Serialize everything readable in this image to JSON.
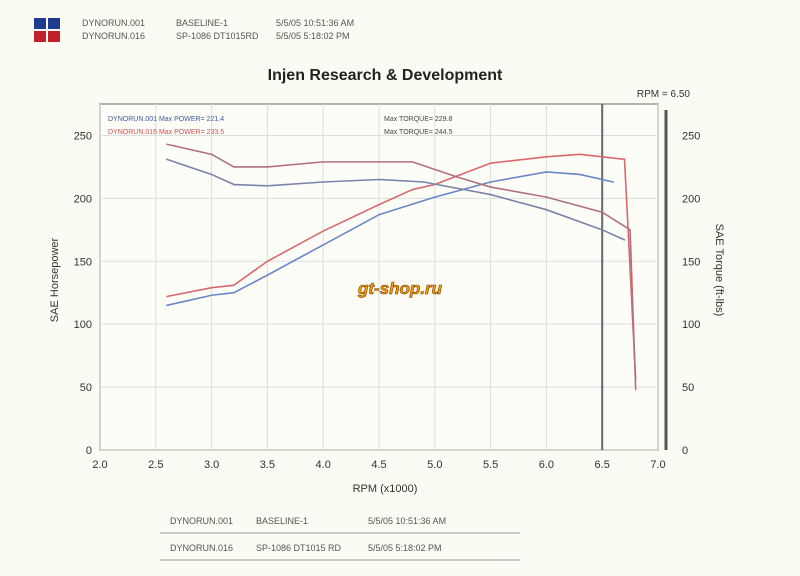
{
  "header": {
    "runs": [
      {
        "run": "DYNORUN.001",
        "label": "BASELINE-1",
        "date": "5/5/05 10:51:36 AM",
        "color": "#1e3c8c"
      },
      {
        "run": "DYNORUN.016",
        "label": "SP-1086  DT1015RD",
        "date": "5/5/05 5:18:02 PM",
        "color": "#c0202a"
      }
    ]
  },
  "footer": {
    "rows": [
      {
        "run": "DYNORUN.001",
        "label": "BASELINE-1",
        "date": "5/5/05 10:51:36 AM"
      },
      {
        "run": "DYNORUN.016",
        "label": "SP-1086  DT1015    RD",
        "date": "5/5/05 5:18:02 PM"
      }
    ]
  },
  "watermark": "gt-shop.ru",
  "chart_data": {
    "type": "line",
    "title": "Injen Research & Development",
    "xlabel": "RPM (x1000)",
    "ylabel": "SAE Horsepower",
    "y2label": "SAE Torque (ft-lbs)",
    "cursor_label": "RPM = 6.50",
    "cursor_x": 6.5,
    "xlim": [
      2.0,
      7.0
    ],
    "ylim": [
      0,
      275
    ],
    "xticks": [
      "2.0",
      "2.5",
      "3.0",
      "3.5",
      "4.0",
      "4.5",
      "5.0",
      "5.5",
      "6.0",
      "6.5",
      "7.0"
    ],
    "yticks": [
      "0",
      "50",
      "100",
      "150",
      "200",
      "250"
    ],
    "grid": true,
    "annotations": [
      {
        "text": "DYNORUN.001  Max POWER= 221.4",
        "color": "#3a5aa8"
      },
      {
        "text": "Max TORQUE= 229.8",
        "color": "#444"
      },
      {
        "text": "DYNORUN.016  Max POWER= 233.5",
        "color": "#d05050"
      },
      {
        "text": "Max TORQUE= 244.5",
        "color": "#444"
      }
    ],
    "series": [
      {
        "key": "power_016",
        "color": "#d86a6a",
        "x": [
          2.6,
          3.0,
          3.2,
          3.5,
          4.0,
          4.5,
          4.8,
          5.0,
          5.5,
          6.0,
          6.3,
          6.7,
          6.8
        ],
        "y": [
          122,
          129,
          131,
          150,
          174,
          195,
          207,
          211,
          228,
          233,
          235,
          231,
          56
        ]
      },
      {
        "key": "power_001",
        "color": "#6a86c8",
        "x": [
          2.6,
          3.0,
          3.2,
          3.5,
          4.0,
          4.5,
          5.0,
          5.5,
          6.0,
          6.3,
          6.6
        ],
        "y": [
          115,
          123,
          125,
          139,
          163,
          187,
          201,
          213,
          221,
          219,
          213
        ]
      },
      {
        "key": "torque_016",
        "color": "#b07080",
        "x": [
          2.6,
          3.0,
          3.2,
          3.5,
          4.0,
          4.5,
          4.8,
          5.2,
          5.5,
          6.0,
          6.5,
          6.75,
          6.8
        ],
        "y": [
          243,
          235,
          225,
          225,
          229,
          229,
          229,
          217,
          209,
          201,
          189,
          175,
          48
        ]
      },
      {
        "key": "torque_001",
        "color": "#7a84a8",
        "x": [
          2.6,
          3.0,
          3.2,
          3.5,
          4.0,
          4.5,
          4.9,
          5.5,
          6.0,
          6.5,
          6.7
        ],
        "y": [
          231,
          219,
          211,
          210,
          213,
          215,
          213,
          203,
          191,
          175,
          167
        ]
      }
    ]
  }
}
